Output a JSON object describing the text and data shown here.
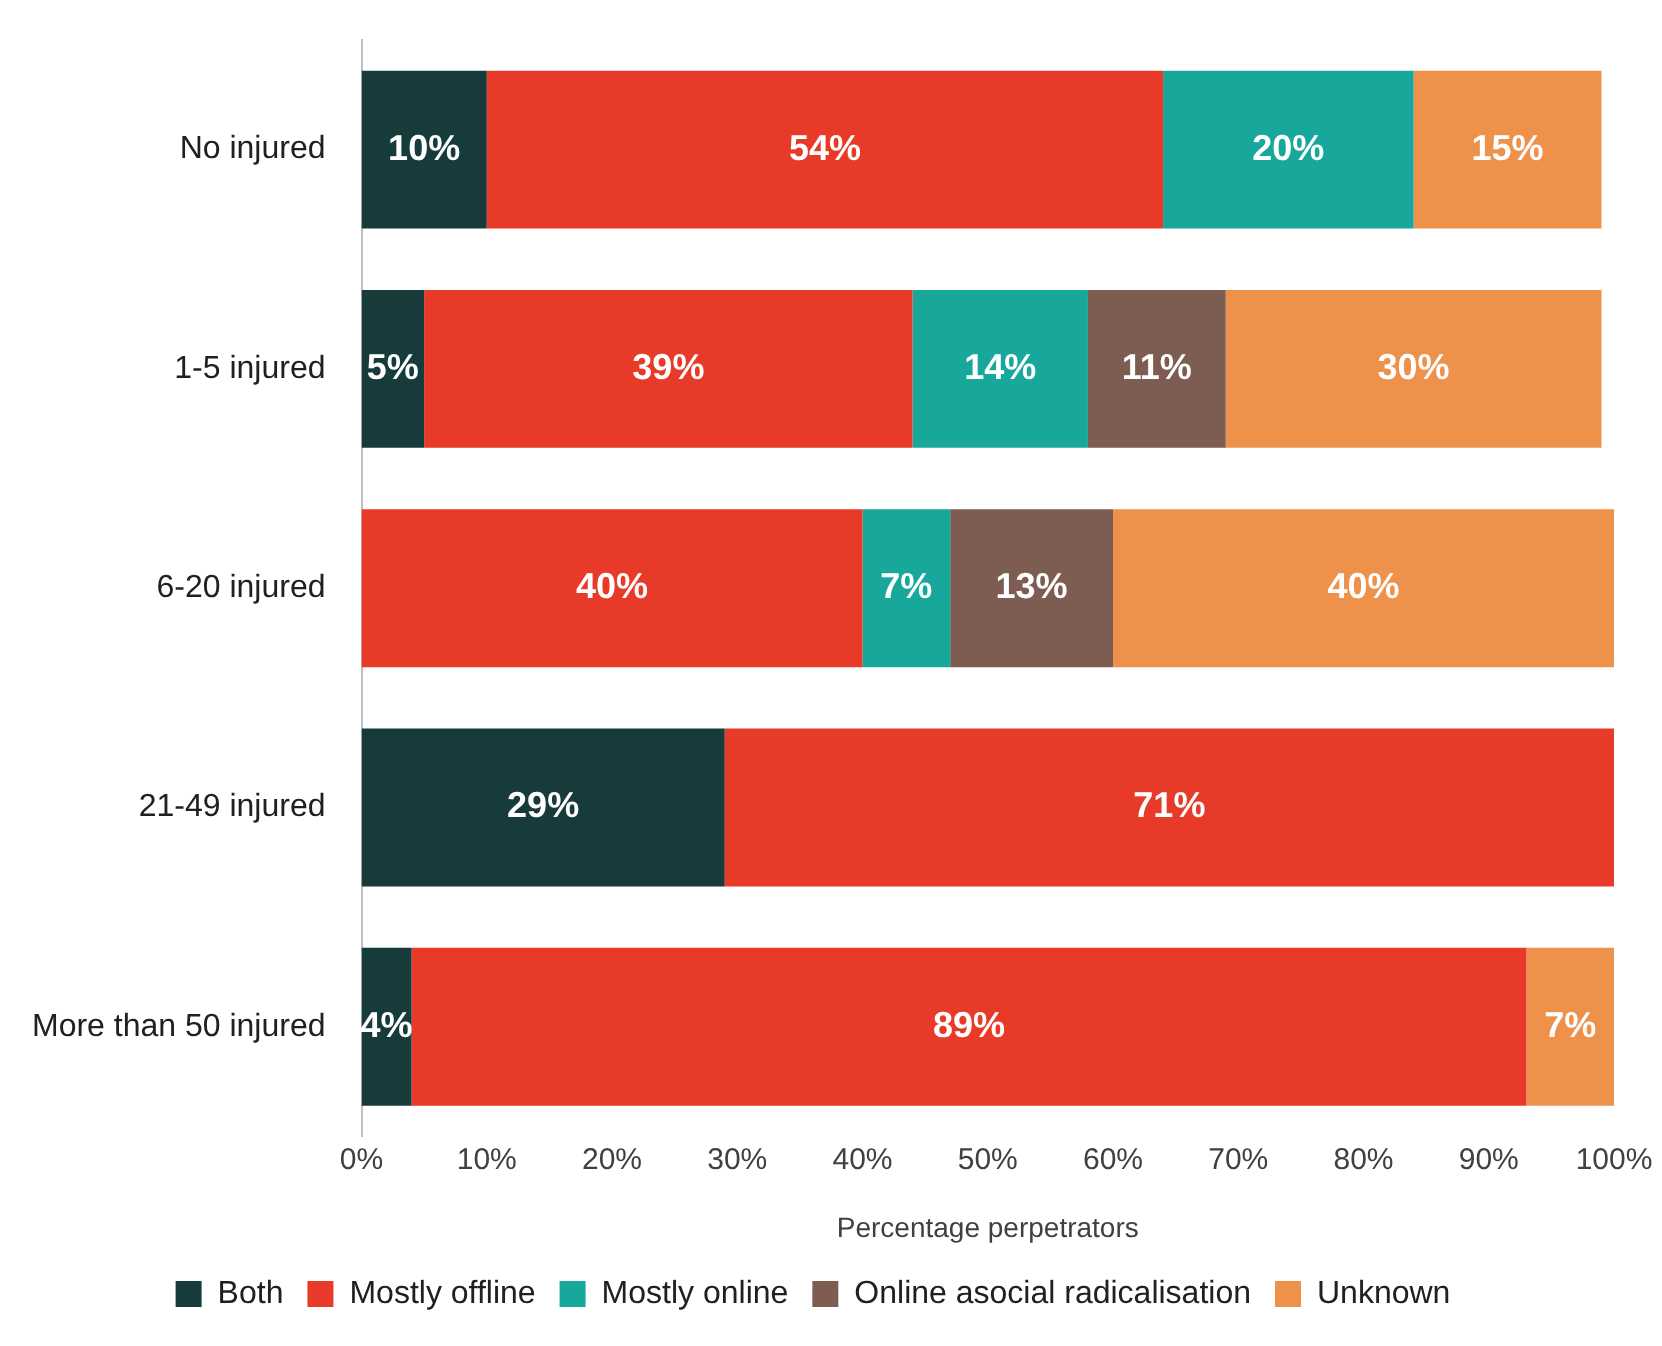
{
  "chart_data": {
    "type": "bar",
    "orientation": "horizontal",
    "stacked": true,
    "xlabel": "Percentage perpetrators",
    "categories": [
      "No injured",
      "1-5 injured",
      "6-20 injured",
      "21-49 injured",
      "More than 50 injured"
    ],
    "series": [
      {
        "name": "Both",
        "color": "#173b3b",
        "values": [
          10,
          5,
          null,
          29,
          4
        ],
        "value_labels": [
          "10%",
          "5%",
          null,
          "29%",
          "4%"
        ]
      },
      {
        "name": "Mostly offline",
        "color": "#e83a28",
        "values": [
          54,
          39,
          40,
          71,
          89
        ],
        "value_labels": [
          "54%",
          "39%",
          "40%",
          "71%",
          "89%"
        ]
      },
      {
        "name": "Mostly online",
        "color": "#17a89b",
        "values": [
          20,
          14,
          7,
          null,
          null
        ],
        "value_labels": [
          "20%",
          "14%",
          "7%",
          null,
          null
        ]
      },
      {
        "name": "Online asocial radicalisation",
        "color": "#7d5c51",
        "values": [
          null,
          11,
          13,
          null,
          null
        ],
        "value_labels": [
          null,
          "11%",
          "13%",
          null,
          null
        ]
      },
      {
        "name": "Unknown",
        "color": "#ee914a",
        "values": [
          15,
          30,
          40,
          null,
          7
        ],
        "value_labels": [
          "15%",
          "30%",
          "40%",
          null,
          "7%"
        ]
      }
    ],
    "xlim": [
      0,
      100
    ],
    "xticks": [
      {
        "value": 0,
        "label": "0%"
      },
      {
        "value": 10,
        "label": "10%"
      },
      {
        "value": 20,
        "label": "20%"
      },
      {
        "value": 30,
        "label": "30%"
      },
      {
        "value": 40,
        "label": "40%"
      },
      {
        "value": 50,
        "label": "50%"
      },
      {
        "value": 60,
        "label": "60%"
      },
      {
        "value": 70,
        "label": "70%"
      },
      {
        "value": 80,
        "label": "80%"
      },
      {
        "value": 90,
        "label": "90%"
      },
      {
        "value": 100,
        "label": "100%"
      }
    ],
    "grid": false,
    "legend": "bottom"
  }
}
